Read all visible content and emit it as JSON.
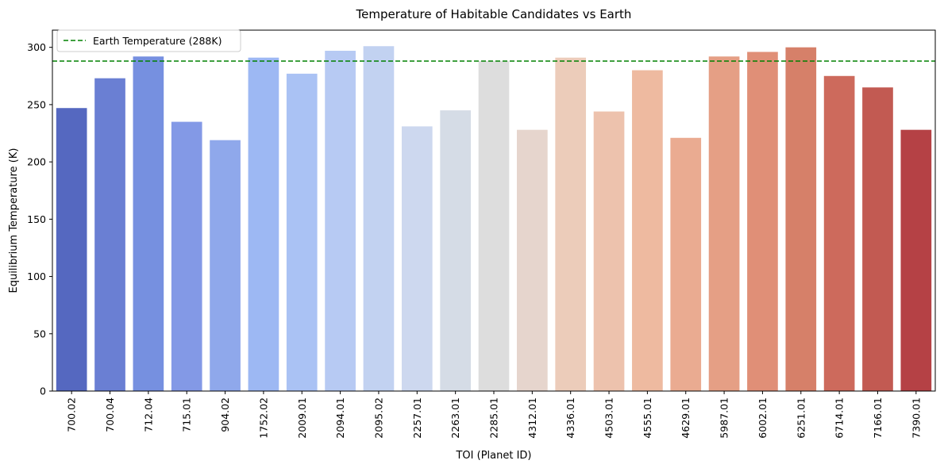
{
  "chart_data": {
    "type": "bar",
    "title": "Temperature of Habitable Candidates vs Earth",
    "xlabel": "TOI (Planet ID)",
    "ylabel": "Equilibrium Temperature (K)",
    "ylim": [
      0,
      315
    ],
    "yticks": [
      0,
      50,
      100,
      150,
      200,
      250,
      300
    ],
    "grid": false,
    "categories": [
      "700.02",
      "700.04",
      "712.04",
      "715.01",
      "904.02",
      "1752.02",
      "2009.01",
      "2094.01",
      "2095.02",
      "2257.01",
      "2263.01",
      "2285.01",
      "4312.01",
      "4336.01",
      "4503.01",
      "4555.01",
      "4629.01",
      "5987.01",
      "6002.01",
      "6251.01",
      "6714.01",
      "7166.01",
      "7390.01"
    ],
    "values": [
      247,
      273,
      292,
      235,
      219,
      291,
      277,
      297,
      301,
      231,
      245,
      288,
      228,
      291,
      244,
      280,
      221,
      292,
      296,
      300,
      275,
      265,
      228
    ],
    "bar_colors": [
      "#5568c0",
      "#6a7fd3",
      "#7690e0",
      "#8399e6",
      "#8fa8eb",
      "#9db8f3",
      "#aac2f4",
      "#b7caf3",
      "#c2d2f1",
      "#cdd8ef",
      "#d5dce6",
      "#dddddd",
      "#e6d5cd",
      "#ecccba",
      "#edc2ad",
      "#eebaa0",
      "#eaab91",
      "#e59f85",
      "#e08f77",
      "#d68069",
      "#cd6a5c",
      "#c25a52",
      "#b54145"
    ],
    "reference_line": {
      "value": 288,
      "label": "Earth Temperature (288K)",
      "color": "#008000",
      "style": "dashed"
    },
    "legend_position": "top-left"
  }
}
